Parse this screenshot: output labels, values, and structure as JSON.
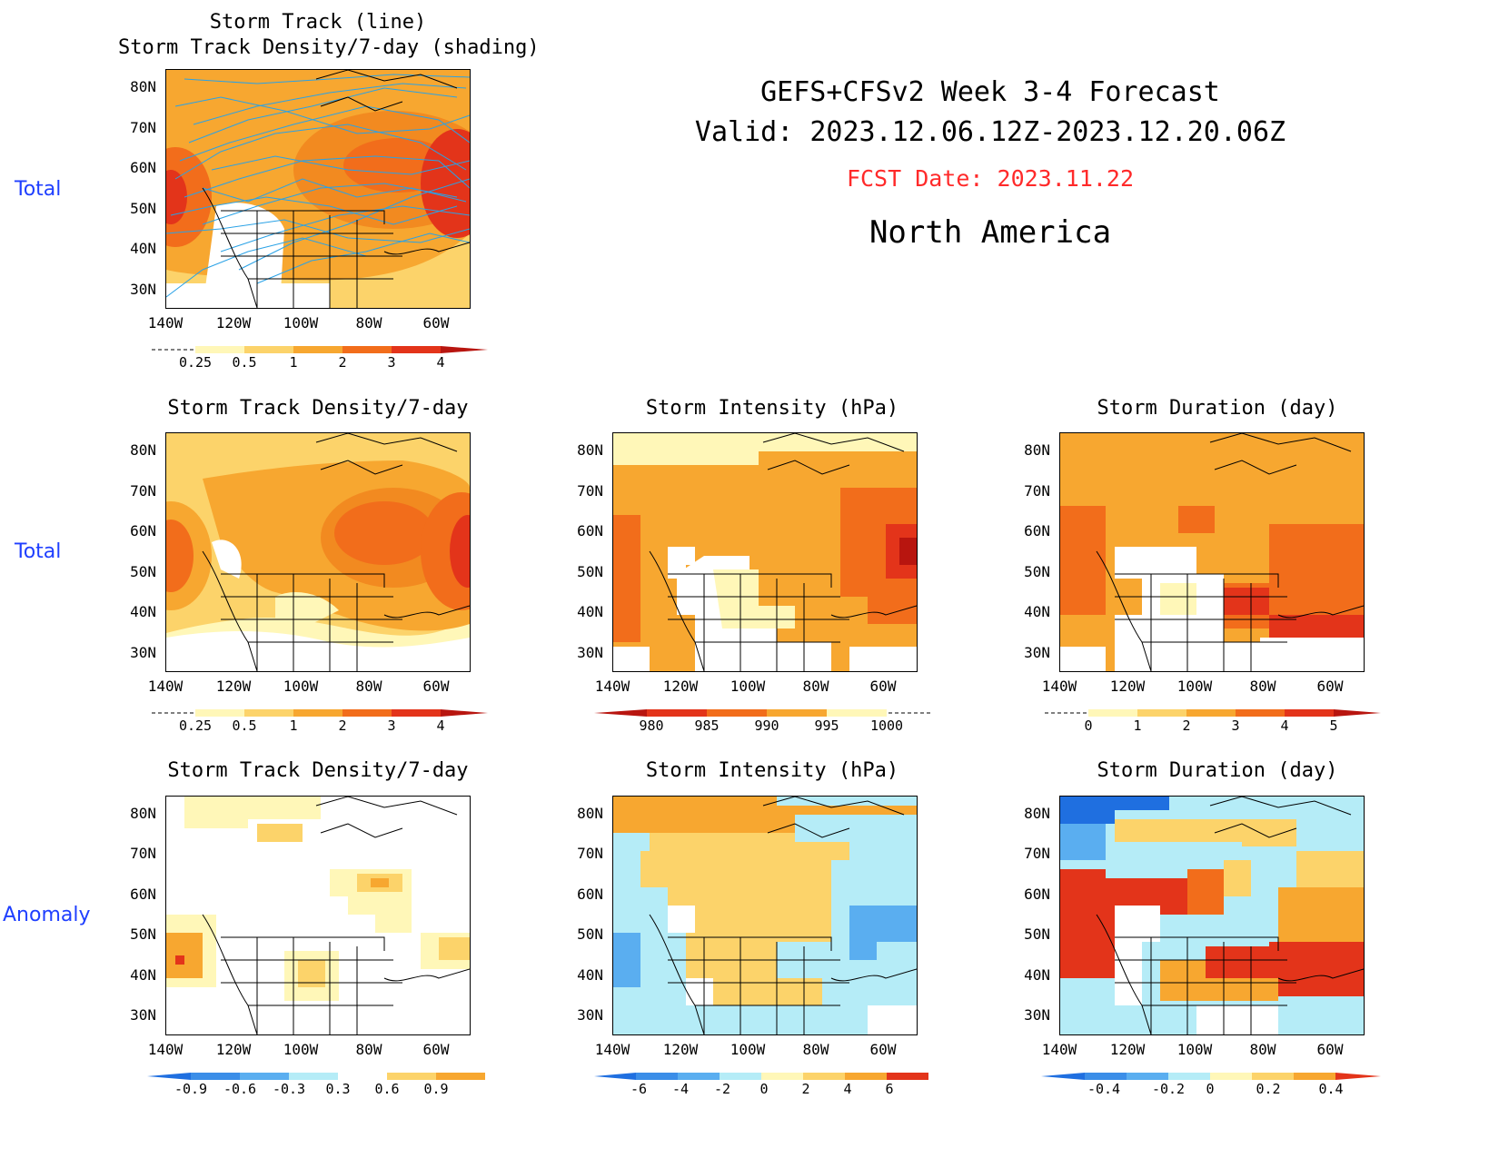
{
  "header": {
    "line1": "GEFS+CFSv2 Week 3-4 Forecast",
    "line2": "Valid: 2023.12.06.12Z-2023.12.20.06Z",
    "fcst": "FCST Date: 2023.11.22",
    "region": "North America",
    "fcst_color": "#ff2a2a"
  },
  "rows": {
    "r1": "Total",
    "r2": "Total",
    "r3": "Anomaly"
  },
  "axes": {
    "lat": [
      "80N",
      "70N",
      "60N",
      "50N",
      "40N",
      "30N"
    ],
    "lon": [
      "140W",
      "120W",
      "100W",
      "80W",
      "60W"
    ]
  },
  "panels": {
    "p1": {
      "title1": "Storm Track (line)",
      "title2": "Storm Track Density/7-day (shading)",
      "cbar": [
        "0.25",
        "0.5",
        "1",
        "2",
        "3",
        "4"
      ]
    },
    "p2": {
      "title": "Storm Track Density/7-day",
      "cbar": [
        "0.25",
        "0.5",
        "1",
        "2",
        "3",
        "4"
      ]
    },
    "p3": {
      "title": "Storm Intensity (hPa)",
      "cbar": [
        "980",
        "985",
        "990",
        "995",
        "1000"
      ]
    },
    "p4": {
      "title": "Storm Duration (day)",
      "cbar": [
        "0",
        "1",
        "2",
        "3",
        "4",
        "5"
      ]
    },
    "p5": {
      "title": "Storm Track Density/7-day",
      "cbar": [
        "-0.9",
        "-0.6",
        "-0.3",
        "0.3",
        "0.6",
        "0.9"
      ]
    },
    "p6": {
      "title": "Storm Intensity (hPa)",
      "cbar": [
        "-6",
        "-4",
        "-2",
        "0",
        "2",
        "4",
        "6"
      ]
    },
    "p7": {
      "title": "Storm Duration (day)",
      "cbar": [
        "-0.4",
        "-0.2",
        "0",
        "0.2",
        "0.4"
      ]
    }
  },
  "colors": {
    "pale": "#fff7b8",
    "light_orange": "#fcd36a",
    "orange": "#f7a730",
    "dark_orange": "#f26d1b",
    "red": "#e3341a",
    "dark_red": "#b8150f",
    "light_blue": "#b5ecf7",
    "mid_blue": "#5aaef0",
    "blue": "#1f6fe0",
    "track": "#2aa2e6"
  }
}
